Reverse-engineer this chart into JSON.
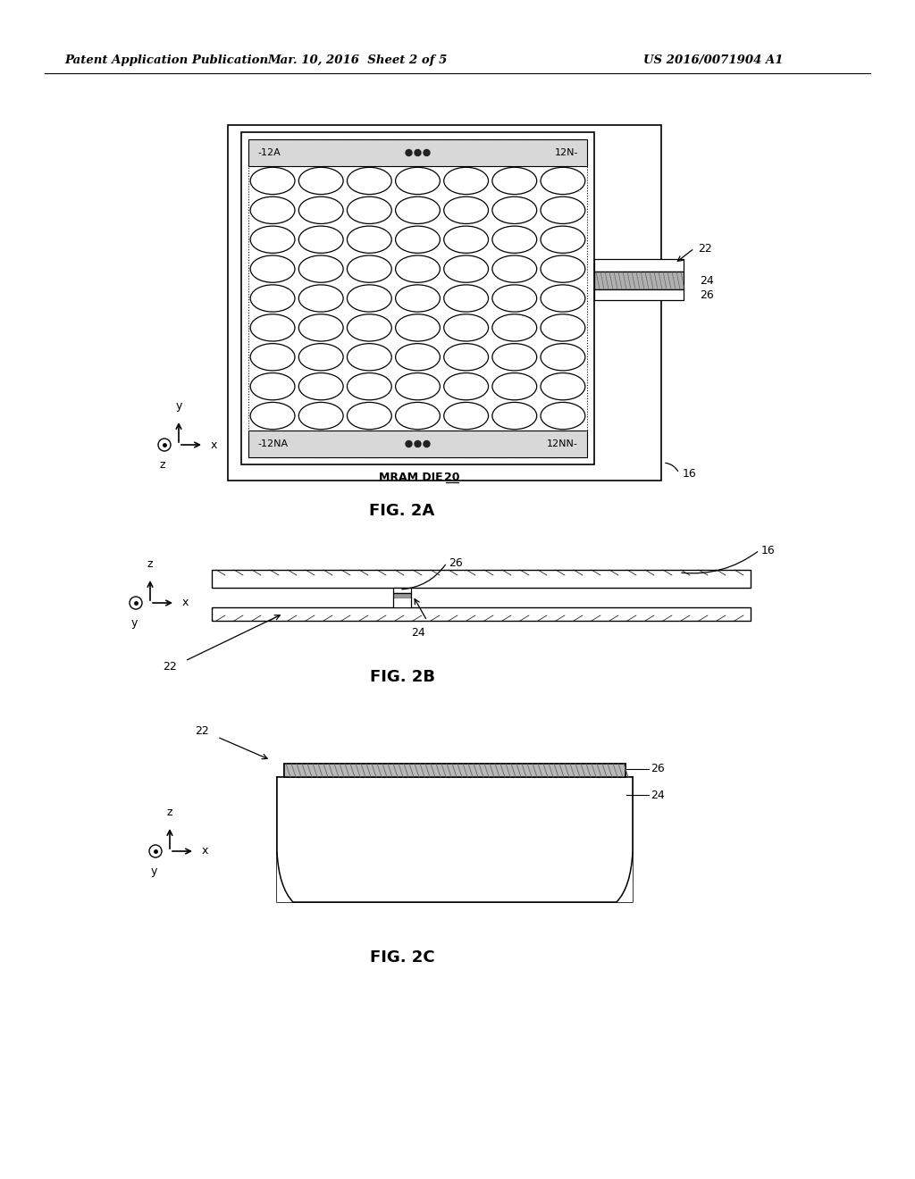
{
  "bg_color": "#ffffff",
  "header_left": "Patent Application Publication",
  "header_mid": "Mar. 10, 2016  Sheet 2 of 5",
  "header_right": "US 2016/0071904 A1",
  "fig2a_label": "FIG. 2A",
  "fig2b_label": "FIG. 2B",
  "fig2c_label": "FIG. 2C",
  "mram_die_label": "MRAM DIE",
  "label_12A": "-12A",
  "label_12N": "12N-",
  "label_12NA": "-12NA",
  "label_12NN": "12NN-",
  "label_16": "16",
  "label_22": "22",
  "label_24": "24",
  "label_26": "26",
  "label_20": "20"
}
